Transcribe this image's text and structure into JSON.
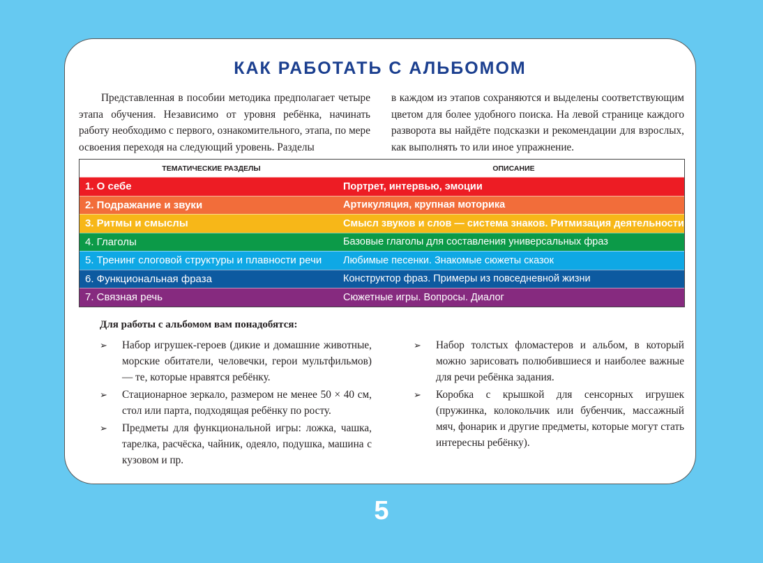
{
  "title": "КАК РАБОТАТЬ С АЛЬБОМОМ",
  "intro_left": "Представленная в пособии методика предполагает четыре этапа обучения. Независимо от уровня ребёнка, начинать работу необходимо с первого, ознакомительного, этапа, по мере освоения переходя на следующий уровень. Разделы",
  "intro_right": "в каждом из этапов сохраняются и выделены соответствующим цветом для более удобного поиска. На левой странице каждого разворота вы найдёте подсказки и рекомендации для взрослых, как выполнять то или иное упражнение.",
  "table": {
    "headers": [
      "ТЕМАТИЧЕСКИЕ РАЗДЕЛЫ",
      "ОПИСАНИЕ"
    ],
    "rows": [
      {
        "section": "1.  О себе",
        "description": "Портрет, интервью, эмоции",
        "color": "#ed1c24"
      },
      {
        "section": "2.  Подражание и звуки",
        "description": "Артикуляция, крупная моторика",
        "color": "#f26d3a"
      },
      {
        "section": "3.  Ритмы и смыслы",
        "description": "Смысл звуков и слов — система знаков. Ритмизация деятельности",
        "color": "#f7b718"
      },
      {
        "section": "4.  Глаголы",
        "description": "Базовые глаголы для составления универсальных фраз",
        "color": "#0c9a48"
      },
      {
        "section": "5.  Тренинг слоговой структуры и плавности речи",
        "description": "Любимые песенки. Знакомые сюжеты сказок",
        "color": "#0fa8e5"
      },
      {
        "section": "6.  Функциональная фраза",
        "description": "Конструктор фраз. Примеры из повседневной жизни",
        "color": "#0d5aa0"
      },
      {
        "section": "7.  Связная речь",
        "description": "Сюжетные игры. Вопросы. Диалог",
        "color": "#862a7f"
      }
    ]
  },
  "needs_title": "Для работы с альбомом вам понадобятся:",
  "bullet_marker": "➢",
  "list_left": [
    "Набор игрушек-героев (дикие и домашние животные, морские обитатели, человечки, герои мультфильмов) — те, которые нравятся ребёнку.",
    "Стационарное зеркало, размером не менее 50 × 40 см, стол или парта, подходящая ребёнку по росту.",
    "Предметы для функциональной игры: ложка, чашка, тарелка, расчёска, чайник, одеяло, подушка, машина с кузовом и пр."
  ],
  "list_right": [
    "Набор толстых фломастеров и альбом, в который можно зарисовать полюбившиеся и наиболее важные для речи ребёнка задания.",
    "Коробка с крышкой для сенсорных игрушек (пружинка, колокольчик или бубенчик, массажный мяч, фонарик и другие предметы, которые могут стать интересны ребёнку)."
  ],
  "page_number": "5"
}
